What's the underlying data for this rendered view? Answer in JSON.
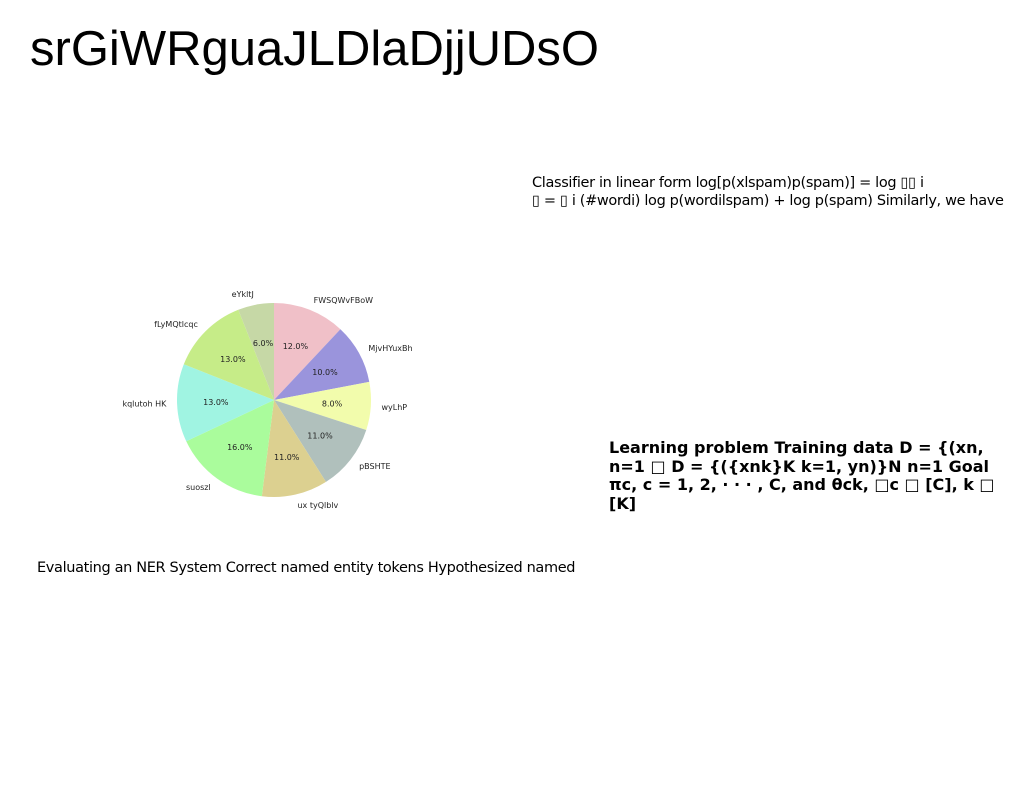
{
  "page": {
    "title": "srGiWRguaJLDlaDjjUDsO"
  },
  "classifier": {
    "text": "Classifier in linear form log[p(xlspam)p(spam)] = log ▯▯ i\n▯ = ▯ i (#wordi) log p(wordilspam) + log p(spam) Similarly, we have"
  },
  "learning": {
    "text": "Learning problem Training data D = {(xn,\nn=1 □ D = {({xnk}K k=1, yn)}N n=1 Goal\nπc, c = 1, 2, · · · , C, and θck, □c □ [C], k □ [K]"
  },
  "ner": {
    "text": "Evaluating an NER System Correct named entity tokens Hypothesized named"
  },
  "chart_data": {
    "type": "pie",
    "start_angle": 90,
    "direction": "clockwise",
    "slices": [
      {
        "label": "FWSQWvFBoW",
        "value": 12.0,
        "pct_label": "12.0%",
        "color": "#f0c0c8"
      },
      {
        "label": "MjvHYuxBh",
        "value": 10.0,
        "pct_label": "10.0%",
        "color": "#9a94dc"
      },
      {
        "label": "wyLhP",
        "value": 8.0,
        "pct_label": "8.0%",
        "color": "#f2fcac"
      },
      {
        "label": "pBSHTE",
        "value": 11.0,
        "pct_label": "11.0%",
        "color": "#b0c0bc"
      },
      {
        "label": "ux tyQlblv",
        "value": 11.0,
        "pct_label": "11.0%",
        "color": "#dcd090"
      },
      {
        "label": "suoszl",
        "value": 16.0,
        "pct_label": "16.0%",
        "color": "#aafc9c"
      },
      {
        "label": "kqlutoh HK",
        "value": 13.0,
        "pct_label": "13.0%",
        "color": "#a0f4e2"
      },
      {
        "label": "fLyMQtlcqc",
        "value": 13.0,
        "pct_label": "13.0%",
        "color": "#c6ec88"
      },
      {
        "label": "eYkltJ",
        "value": 6.0,
        "pct_label": "6.0%",
        "color": "#c6d8a6"
      }
    ]
  }
}
